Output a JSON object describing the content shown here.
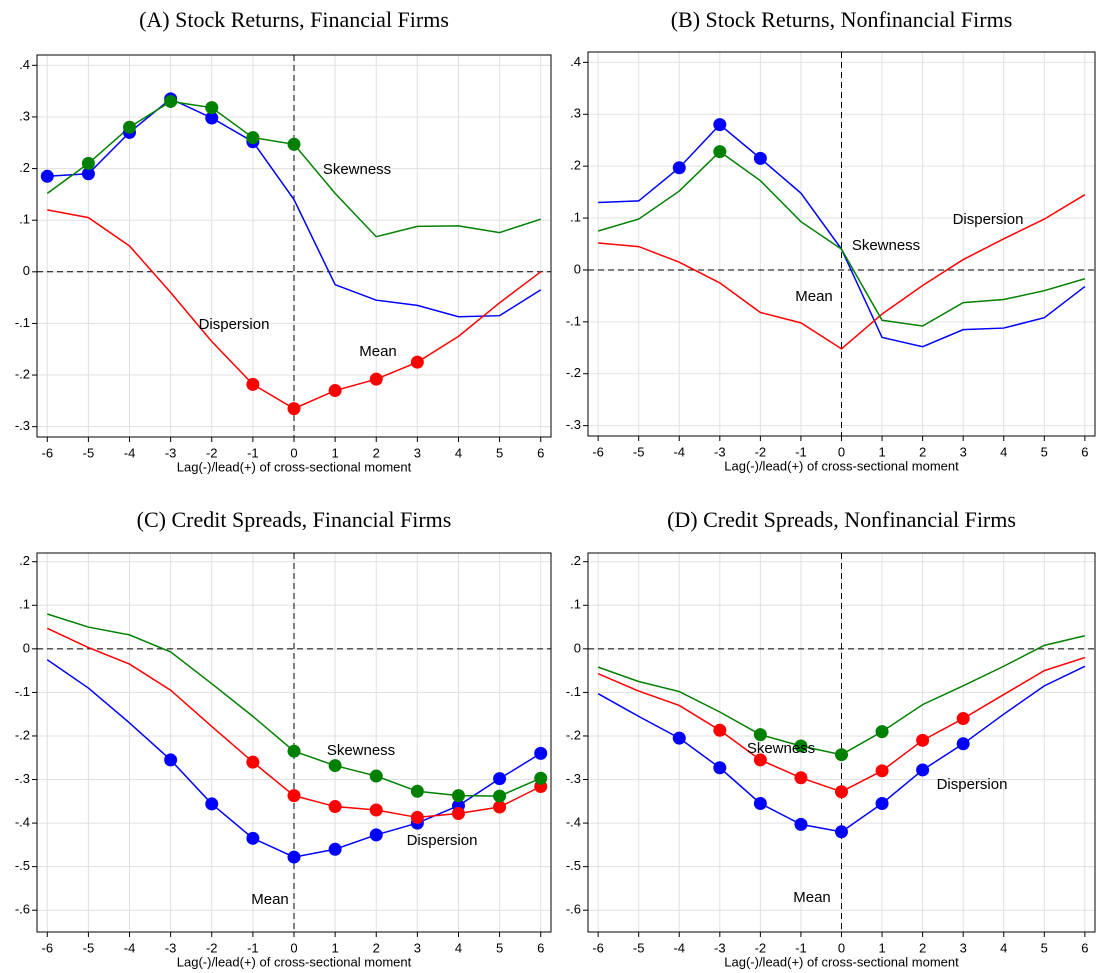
{
  "chart_data": [
    {
      "type": "line",
      "title": "(A) Stock Returns, Financial Firms",
      "xlabel": "Lag(-)/lead(+) of cross-sectional moment",
      "x": [
        -6,
        -5,
        -4,
        -3,
        -2,
        -1,
        0,
        1,
        2,
        3,
        4,
        5,
        6
      ],
      "xlim": [
        -6.25,
        6.25
      ],
      "xticks": [
        -6,
        -5,
        -4,
        -3,
        -2,
        -1,
        0,
        1,
        2,
        3,
        4,
        5,
        6
      ],
      "ylim": [
        -0.32,
        0.42
      ],
      "yticks": [
        {
          "value": 0.4,
          "label": ".4"
        },
        {
          "value": 0.3,
          "label": ".3"
        },
        {
          "value": 0.2,
          "label": ".2"
        },
        {
          "value": 0.1,
          "label": ".1"
        },
        0,
        {
          "value": -0.1,
          "label": "-.1"
        },
        {
          "value": -0.2,
          "label": "-.2"
        },
        {
          "value": -0.3,
          "label": "-.3"
        }
      ],
      "grid": true,
      "series": [
        {
          "name": "Mean",
          "color": "#0000ff",
          "values": [
            0.185,
            0.19,
            0.27,
            0.335,
            0.298,
            0.252,
            0.14,
            -0.025,
            -0.055,
            -0.065,
            -0.087,
            -0.085,
            -0.035
          ],
          "markers": [
            true,
            true,
            true,
            true,
            true,
            true,
            false,
            false,
            false,
            false,
            false,
            false,
            false
          ]
        },
        {
          "name": "Dispersion",
          "color": "#ff0000",
          "values": [
            0.12,
            0.105,
            0.05,
            -0.04,
            -0.135,
            -0.218,
            -0.265,
            -0.23,
            -0.208,
            -0.175,
            -0.125,
            -0.06,
            0
          ],
          "markers": [
            false,
            false,
            false,
            false,
            false,
            true,
            true,
            true,
            true,
            true,
            false,
            false,
            false
          ]
        },
        {
          "name": "Skewness",
          "color": "#008000",
          "values": [
            0.152,
            0.21,
            0.28,
            0.33,
            0.318,
            0.26,
            0.247,
            0.152,
            0.068,
            0.088,
            0.089,
            0.076,
            0.102
          ],
          "markers": [
            false,
            true,
            true,
            true,
            true,
            true,
            true,
            false,
            false,
            false,
            false,
            false,
            false
          ]
        }
      ]
    },
    {
      "type": "line",
      "title": "(B) Stock Returns, Nonfinancial Firms",
      "xlabel": "Lag(-)/lead(+) of cross-sectional moment",
      "x": [
        -6,
        -5,
        -4,
        -3,
        -2,
        -1,
        0,
        1,
        2,
        3,
        4,
        5,
        6
      ],
      "xlim": [
        -6.25,
        6.25
      ],
      "xticks": [
        -6,
        -5,
        -4,
        -3,
        -2,
        -1,
        0,
        1,
        2,
        3,
        4,
        5,
        6
      ],
      "ylim": [
        -0.32,
        0.42
      ],
      "yticks": [
        {
          "value": 0.4,
          "label": ".4"
        },
        {
          "value": 0.3,
          "label": ".3"
        },
        {
          "value": 0.2,
          "label": ".2"
        },
        {
          "value": 0.1,
          "label": ".1"
        },
        0,
        {
          "value": -0.1,
          "label": "-.1"
        },
        {
          "value": -0.2,
          "label": "-.2"
        },
        {
          "value": -0.3,
          "label": "-.3"
        }
      ],
      "grid": true,
      "series": [
        {
          "name": "Mean",
          "color": "#0000ff",
          "values": [
            0.13,
            0.133,
            0.197,
            0.28,
            0.215,
            0.148,
            0.04,
            -0.13,
            -0.148,
            -0.115,
            -0.112,
            -0.092,
            -0.032
          ],
          "markers": [
            false,
            false,
            true,
            true,
            true,
            false,
            false,
            false,
            false,
            false,
            false,
            false,
            false
          ]
        },
        {
          "name": "Dispersion",
          "color": "#ff0000",
          "values": [
            0.052,
            0.045,
            0.015,
            -0.025,
            -0.082,
            -0.102,
            -0.152,
            -0.085,
            -0.03,
            0.02,
            0.06,
            0.098,
            0.145
          ],
          "markers": [
            false,
            false,
            false,
            false,
            false,
            false,
            false,
            false,
            false,
            false,
            false,
            false,
            false
          ]
        },
        {
          "name": "Skewness",
          "color": "#008000",
          "values": [
            0.075,
            0.098,
            0.152,
            0.228,
            0.172,
            0.093,
            0.04,
            -0.097,
            -0.108,
            -0.063,
            -0.057,
            -0.04,
            -0.017
          ],
          "markers": [
            false,
            false,
            false,
            true,
            false,
            false,
            false,
            false,
            false,
            false,
            false,
            false,
            false
          ]
        }
      ]
    },
    {
      "type": "line",
      "title": "(C) Credit Spreads, Financial Firms",
      "xlabel": "Lag(-)/lead(+) of cross-sectional moment",
      "x": [
        -6,
        -5,
        -4,
        -3,
        -2,
        -1,
        0,
        1,
        2,
        3,
        4,
        5,
        6
      ],
      "xlim": [
        -6.25,
        6.25
      ],
      "xticks": [
        -6,
        -5,
        -4,
        -3,
        -2,
        -1,
        0,
        1,
        2,
        3,
        4,
        5,
        6
      ],
      "ylim": [
        -0.65,
        0.22
      ],
      "yticks": [
        {
          "value": 0.2,
          "label": ".2"
        },
        {
          "value": 0.1,
          "label": ".1"
        },
        0,
        {
          "value": -0.1,
          "label": "-.1"
        },
        {
          "value": -0.2,
          "label": "-.2"
        },
        {
          "value": -0.3,
          "label": "-.3"
        },
        {
          "value": -0.4,
          "label": "-.4"
        },
        {
          "value": -0.5,
          "label": "-.5"
        },
        {
          "value": -0.6,
          "label": "-.6"
        }
      ],
      "grid": true,
      "series": [
        {
          "name": "Mean",
          "color": "#0000ff",
          "values": [
            -0.025,
            -0.09,
            -0.17,
            -0.255,
            -0.356,
            -0.435,
            -0.478,
            -0.46,
            -0.427,
            -0.4,
            -0.36,
            -0.298,
            -0.24
          ],
          "markers": [
            false,
            false,
            false,
            true,
            true,
            true,
            true,
            true,
            true,
            true,
            true,
            true,
            true
          ]
        },
        {
          "name": "Dispersion",
          "color": "#ff0000",
          "values": [
            0.047,
            0.003,
            -0.035,
            -0.095,
            -0.178,
            -0.26,
            -0.337,
            -0.362,
            -0.37,
            -0.387,
            -0.378,
            -0.363,
            -0.316
          ],
          "markers": [
            false,
            false,
            false,
            false,
            false,
            true,
            true,
            true,
            true,
            true,
            true,
            true,
            true
          ]
        },
        {
          "name": "Skewness",
          "color": "#008000",
          "values": [
            0.08,
            0.05,
            0.032,
            -0.007,
            -0.08,
            -0.155,
            -0.235,
            -0.268,
            -0.292,
            -0.327,
            -0.337,
            -0.338,
            -0.297
          ],
          "markers": [
            false,
            false,
            false,
            false,
            false,
            false,
            true,
            true,
            true,
            true,
            true,
            true,
            true
          ]
        }
      ]
    },
    {
      "type": "line",
      "title": "(D) Credit Spreads, Nonfinancial Firms",
      "xlabel": "Lag(-)/lead(+) of cross-sectional moment",
      "x": [
        -6,
        -5,
        -4,
        -3,
        -2,
        -1,
        0,
        1,
        2,
        3,
        4,
        5,
        6
      ],
      "xlim": [
        -6.25,
        6.25
      ],
      "xticks": [
        -6,
        -5,
        -4,
        -3,
        -2,
        -1,
        0,
        1,
        2,
        3,
        4,
        5,
        6
      ],
      "ylim": [
        -0.65,
        0.22
      ],
      "yticks": [
        {
          "value": 0.2,
          "label": ".2"
        },
        {
          "value": 0.1,
          "label": ".1"
        },
        0,
        {
          "value": -0.1,
          "label": "-.1"
        },
        {
          "value": -0.2,
          "label": "-.2"
        },
        {
          "value": -0.3,
          "label": "-.3"
        },
        {
          "value": -0.4,
          "label": "-.4"
        },
        {
          "value": -0.5,
          "label": "-.5"
        },
        {
          "value": -0.6,
          "label": "-.6"
        }
      ],
      "grid": true,
      "series": [
        {
          "name": "Mean",
          "color": "#0000ff",
          "values": [
            -0.103,
            -0.155,
            -0.205,
            -0.273,
            -0.355,
            -0.403,
            -0.42,
            -0.355,
            -0.278,
            -0.218,
            -0.15,
            -0.085,
            -0.04
          ],
          "markers": [
            false,
            false,
            true,
            true,
            true,
            true,
            true,
            true,
            true,
            true,
            false,
            false,
            false
          ]
        },
        {
          "name": "Dispersion",
          "color": "#ff0000",
          "values": [
            -0.057,
            -0.097,
            -0.13,
            -0.187,
            -0.255,
            -0.296,
            -0.328,
            -0.28,
            -0.21,
            -0.16,
            -0.105,
            -0.05,
            -0.02
          ],
          "markers": [
            false,
            false,
            false,
            true,
            true,
            true,
            true,
            true,
            true,
            true,
            false,
            false,
            false
          ]
        },
        {
          "name": "Skewness",
          "color": "#008000",
          "values": [
            -0.042,
            -0.075,
            -0.098,
            -0.145,
            -0.197,
            -0.223,
            -0.243,
            -0.19,
            -0.128,
            -0.085,
            -0.04,
            0.008,
            0.03
          ],
          "markers": [
            false,
            false,
            false,
            false,
            true,
            true,
            true,
            true,
            false,
            false,
            false,
            false,
            false
          ]
        }
      ]
    }
  ]
}
